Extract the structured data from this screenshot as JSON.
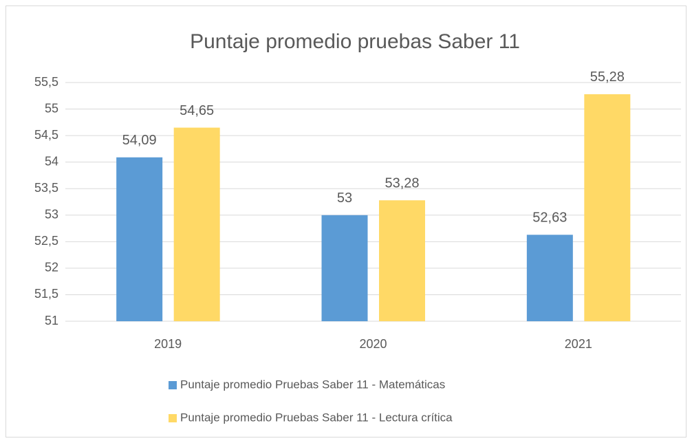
{
  "chart_data": {
    "type": "bar",
    "title": "Puntaje promedio pruebas Saber 11",
    "categories": [
      "2019",
      "2020",
      "2021"
    ],
    "series": [
      {
        "name": "Puntaje promedio Pruebas Saber 11 - Matemáticas",
        "color": "#5b9bd5",
        "values": [
          54.09,
          53,
          52.63
        ],
        "value_labels": [
          "54,09",
          "53",
          "52,63"
        ]
      },
      {
        "name": "Puntaje promedio Pruebas Saber 11 - Lectura crítica",
        "color": "#ffd966",
        "values": [
          54.65,
          53.28,
          55.28
        ],
        "value_labels": [
          "54,65",
          "53,28",
          "55,28"
        ]
      }
    ],
    "ylim": [
      51,
      55.5
    ],
    "yticks": [
      51,
      {
        "value": 51.5,
        "label": "51,5"
      },
      52,
      {
        "value": 52.5,
        "label": "52,5"
      },
      53,
      {
        "value": 53.5,
        "label": "53,5"
      },
      54,
      {
        "value": 54.5,
        "label": "54,5"
      },
      55,
      {
        "value": 55.5,
        "label": "55,5"
      }
    ],
    "grid": true,
    "legend": "bottom"
  }
}
